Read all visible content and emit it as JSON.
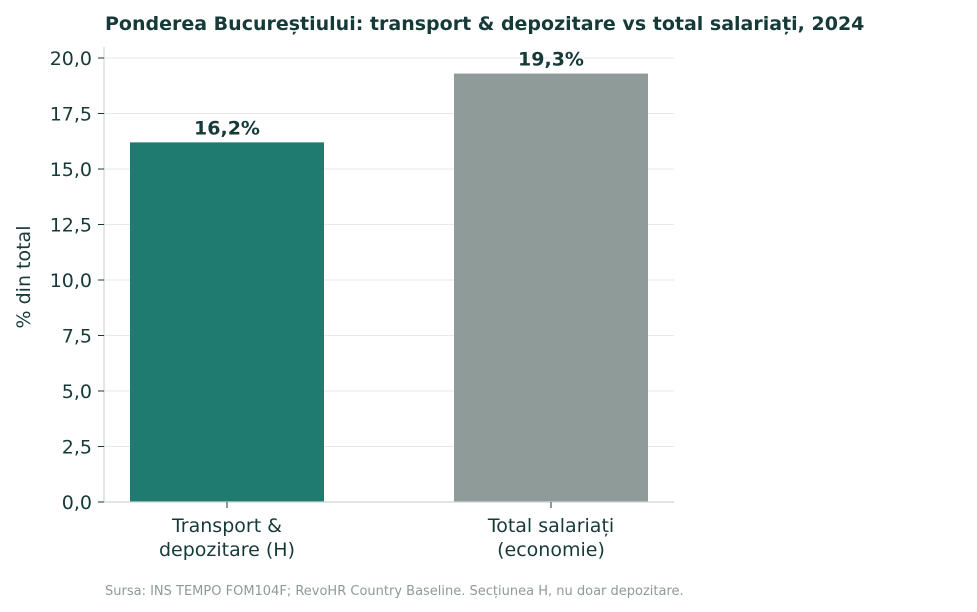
{
  "chart_data": {
    "type": "bar",
    "title": "Ponderea Bucureștiului: transport & depozitare vs total salariați, 2024",
    "xlabel": "",
    "ylabel": "% din total",
    "ylim": [
      0,
      20
    ],
    "yticks": [
      "0,0",
      "2,5",
      "5,0",
      "7,5",
      "10,0",
      "12,5",
      "15,0",
      "17,5",
      "20,0"
    ],
    "grid": "horizontal",
    "categories": [
      [
        "Transport &",
        "depozitare (H)"
      ],
      [
        "Total salariați",
        "(economie)"
      ]
    ],
    "values": [
      16.2,
      19.3
    ],
    "data_labels": [
      "16,2%",
      "19,3%"
    ],
    "colors": [
      "#1f7a70",
      "#8f9b98"
    ]
  },
  "footer": {
    "source": "Sursa: INS TEMPO FOM104F; RevoHR Country Baseline. Secțiunea H, nu doar depozitare."
  }
}
